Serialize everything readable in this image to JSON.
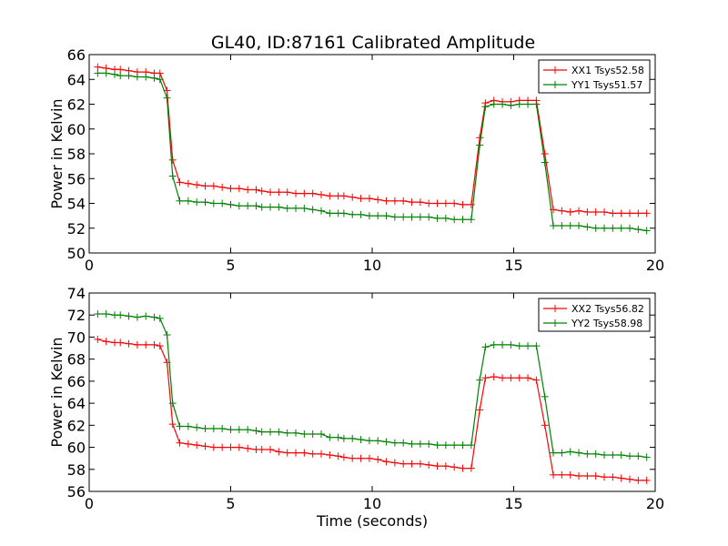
{
  "title": "GL40, ID:87161 Calibrated Amplitude",
  "chart_data": [
    {
      "type": "line",
      "xlabel": "",
      "ylabel": "Power in Kelvin",
      "xlim": [
        0,
        20
      ],
      "ylim": [
        50,
        66
      ],
      "xticks": [
        0,
        5,
        10,
        15,
        20
      ],
      "yticks": [
        50,
        52,
        54,
        56,
        58,
        60,
        62,
        64,
        66
      ],
      "legend_position": "top-right",
      "x": [
        0.3,
        0.6,
        0.9,
        1.1,
        1.4,
        1.7,
        2.0,
        2.3,
        2.5,
        2.75,
        2.95,
        3.2,
        3.5,
        3.8,
        4.1,
        4.4,
        4.7,
        5.0,
        5.3,
        5.6,
        5.9,
        6.1,
        6.4,
        6.7,
        7.0,
        7.3,
        7.6,
        7.9,
        8.2,
        8.5,
        8.8,
        9.0,
        9.3,
        9.6,
        9.9,
        10.2,
        10.5,
        10.8,
        11.1,
        11.4,
        11.7,
        12.0,
        12.3,
        12.6,
        12.9,
        13.2,
        13.5,
        13.8,
        14.0,
        14.3,
        14.6,
        14.9,
        15.2,
        15.5,
        15.8,
        16.1,
        16.4,
        16.7,
        17.0,
        17.3,
        17.6,
        17.9,
        18.2,
        18.5,
        18.8,
        19.1,
        19.4,
        19.7
      ],
      "series": [
        {
          "name": "XX1 Tsys52.58",
          "color": "#ff0000",
          "values": [
            65.0,
            64.9,
            64.8,
            64.8,
            64.7,
            64.6,
            64.6,
            64.5,
            64.5,
            63.1,
            57.5,
            55.7,
            55.6,
            55.5,
            55.4,
            55.4,
            55.3,
            55.2,
            55.2,
            55.1,
            55.1,
            55.0,
            54.9,
            54.9,
            54.9,
            54.8,
            54.8,
            54.8,
            54.7,
            54.6,
            54.6,
            54.6,
            54.5,
            54.4,
            54.4,
            54.3,
            54.2,
            54.2,
            54.2,
            54.1,
            54.1,
            54.0,
            54.0,
            54.0,
            54.0,
            53.9,
            53.9,
            59.3,
            62.1,
            62.3,
            62.2,
            62.2,
            62.3,
            62.3,
            62.3,
            58.0,
            53.5,
            53.4,
            53.3,
            53.4,
            53.3,
            53.3,
            53.3,
            53.2,
            53.2,
            53.2,
            53.2,
            53.2
          ]
        },
        {
          "name": "YY1 Tsys51.57",
          "color": "#008000",
          "values": [
            64.5,
            64.5,
            64.4,
            64.3,
            64.3,
            64.2,
            64.2,
            64.1,
            64.0,
            62.5,
            56.2,
            54.2,
            54.2,
            54.1,
            54.1,
            54.0,
            54.0,
            53.9,
            53.8,
            53.8,
            53.8,
            53.7,
            53.7,
            53.7,
            53.6,
            53.6,
            53.6,
            53.5,
            53.4,
            53.2,
            53.2,
            53.2,
            53.1,
            53.1,
            53.0,
            53.0,
            53.0,
            52.9,
            52.9,
            52.9,
            52.9,
            52.9,
            52.8,
            52.8,
            52.7,
            52.7,
            52.7,
            58.7,
            61.8,
            62.0,
            62.0,
            61.9,
            62.0,
            62.0,
            62.0,
            57.3,
            52.2,
            52.2,
            52.2,
            52.2,
            52.1,
            52.0,
            52.0,
            52.0,
            52.0,
            52.0,
            51.9,
            51.8
          ]
        }
      ]
    },
    {
      "type": "line",
      "xlabel": "Time (seconds)",
      "ylabel": "Power in Kelvin",
      "xlim": [
        0,
        20
      ],
      "ylim": [
        56,
        74
      ],
      "xticks": [
        0,
        5,
        10,
        15,
        20
      ],
      "yticks": [
        56,
        58,
        60,
        62,
        64,
        66,
        68,
        70,
        72,
        74
      ],
      "legend_position": "top-right",
      "x": [
        0.3,
        0.6,
        0.9,
        1.1,
        1.4,
        1.7,
        2.0,
        2.3,
        2.5,
        2.75,
        2.95,
        3.2,
        3.5,
        3.8,
        4.1,
        4.4,
        4.7,
        5.0,
        5.3,
        5.6,
        5.9,
        6.1,
        6.4,
        6.7,
        7.0,
        7.3,
        7.6,
        7.9,
        8.2,
        8.5,
        8.8,
        9.0,
        9.3,
        9.6,
        9.9,
        10.2,
        10.5,
        10.8,
        11.1,
        11.4,
        11.7,
        12.0,
        12.3,
        12.6,
        12.9,
        13.2,
        13.5,
        13.8,
        14.0,
        14.3,
        14.6,
        14.9,
        15.2,
        15.5,
        15.8,
        16.1,
        16.4,
        16.7,
        17.0,
        17.3,
        17.6,
        17.9,
        18.2,
        18.5,
        18.8,
        19.1,
        19.4,
        19.7
      ],
      "series": [
        {
          "name": "XX2 Tsys56.82",
          "color": "#ff0000",
          "values": [
            69.8,
            69.6,
            69.5,
            69.5,
            69.4,
            69.3,
            69.3,
            69.3,
            69.2,
            67.7,
            62.1,
            60.4,
            60.3,
            60.2,
            60.1,
            60.0,
            60.0,
            60.0,
            60.0,
            59.9,
            59.8,
            59.8,
            59.8,
            59.6,
            59.5,
            59.5,
            59.5,
            59.4,
            59.4,
            59.3,
            59.2,
            59.1,
            59.0,
            59.0,
            59.0,
            58.9,
            58.7,
            58.6,
            58.5,
            58.5,
            58.5,
            58.4,
            58.3,
            58.3,
            58.2,
            58.1,
            58.1,
            63.4,
            66.3,
            66.4,
            66.3,
            66.3,
            66.3,
            66.3,
            66.1,
            62.0,
            57.5,
            57.5,
            57.5,
            57.4,
            57.4,
            57.4,
            57.3,
            57.3,
            57.2,
            57.1,
            57.0,
            57.0
          ]
        },
        {
          "name": "YY2 Tsys58.98",
          "color": "#008000",
          "values": [
            72.1,
            72.1,
            72.0,
            72.0,
            71.9,
            71.8,
            71.9,
            71.8,
            71.7,
            70.2,
            64.0,
            61.9,
            61.9,
            61.8,
            61.7,
            61.7,
            61.7,
            61.6,
            61.6,
            61.6,
            61.5,
            61.4,
            61.4,
            61.4,
            61.3,
            61.3,
            61.2,
            61.2,
            61.2,
            60.9,
            60.9,
            60.8,
            60.8,
            60.7,
            60.6,
            60.6,
            60.5,
            60.4,
            60.4,
            60.3,
            60.3,
            60.3,
            60.2,
            60.2,
            60.2,
            60.2,
            60.2,
            66.1,
            69.1,
            69.3,
            69.3,
            69.3,
            69.2,
            69.2,
            69.2,
            64.6,
            59.5,
            59.5,
            59.6,
            59.5,
            59.4,
            59.4,
            59.3,
            59.3,
            59.3,
            59.2,
            59.2,
            59.1
          ]
        }
      ]
    }
  ]
}
